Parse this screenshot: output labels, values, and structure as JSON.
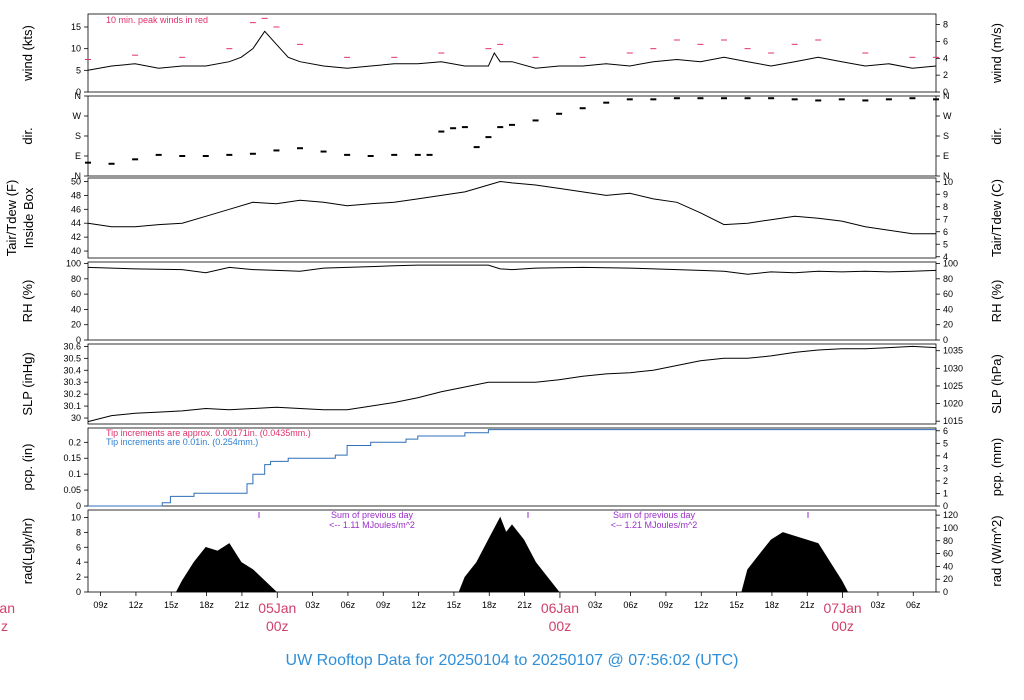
{
  "title": "UW Rooftop Data for 20250104  to  20250107 @ 07:56:02  (UTC)",
  "chart_data": {
    "type": "line",
    "time_axis": {
      "unit": "hours since 2025-01-04 07:56 UTC",
      "range": [
        0,
        72
      ],
      "ticks": [
        {
          "h": 1.07,
          "label": "09z"
        },
        {
          "h": 4.07,
          "label": "12z"
        },
        {
          "h": 7.07,
          "label": "15z"
        },
        {
          "h": 10.07,
          "label": "18z"
        },
        {
          "h": 13.07,
          "label": "21z"
        },
        {
          "h": 19.07,
          "label": "03z"
        },
        {
          "h": 22.07,
          "label": "06z"
        },
        {
          "h": 25.07,
          "label": "09z"
        },
        {
          "h": 28.07,
          "label": "12z"
        },
        {
          "h": 31.07,
          "label": "15z"
        },
        {
          "h": 34.07,
          "label": "18z"
        },
        {
          "h": 37.07,
          "label": "21z"
        },
        {
          "h": 43.07,
          "label": "03z"
        },
        {
          "h": 46.07,
          "label": "06z"
        },
        {
          "h": 49.07,
          "label": "09z"
        },
        {
          "h": 52.07,
          "label": "12z"
        },
        {
          "h": 55.07,
          "label": "15z"
        },
        {
          "h": 58.07,
          "label": "18z"
        },
        {
          "h": 61.07,
          "label": "21z"
        },
        {
          "h": 67.07,
          "label": "03z"
        },
        {
          "h": 70.07,
          "label": "06z"
        }
      ],
      "days": [
        {
          "h": 16.07,
          "label": "05Jan",
          "sub": "00z"
        },
        {
          "h": 40.07,
          "label": "06Jan",
          "sub": "00z"
        },
        {
          "h": 64.07,
          "label": "07Jan",
          "sub": "00z"
        }
      ],
      "left_cut": {
        "label": "Jan",
        "sub": "z"
      }
    },
    "panels": [
      {
        "id": "wind",
        "ylabel": "wind (kts)",
        "ylabel_right": "wind (m/s)",
        "ylim": [
          0,
          18
        ],
        "yticks": [
          0,
          5,
          10,
          15
        ],
        "right_ylim": [
          0,
          9.26
        ],
        "right_yticks": [
          0,
          2,
          4,
          6,
          8
        ],
        "annotation": "10 min. peak winds in red",
        "series": {
          "x": [
            0,
            2,
            4,
            6,
            8,
            10,
            12,
            13,
            14,
            15,
            16,
            17,
            18,
            20,
            22,
            24,
            26,
            28,
            30,
            32,
            34,
            34.5,
            35,
            36,
            38,
            40,
            42,
            44,
            46,
            48,
            50,
            52,
            54,
            56,
            58,
            60,
            62,
            64,
            66,
            68,
            70,
            72
          ],
          "y": [
            5,
            6,
            6.5,
            5.5,
            6,
            6,
            7,
            8,
            10,
            14,
            11,
            8,
            7,
            6,
            5.5,
            6,
            6.5,
            6.5,
            7,
            6,
            6,
            9,
            7,
            7,
            5.5,
            6,
            6,
            6.5,
            6,
            7,
            7.5,
            7,
            8,
            7,
            6,
            7,
            8,
            7,
            6,
            6.5,
            5.5,
            6
          ]
        },
        "peaks": {
          "x": [
            0,
            4,
            8,
            12,
            14,
            15,
            16,
            18,
            22,
            26,
            30,
            34,
            35,
            38,
            42,
            46,
            48,
            50,
            52,
            54,
            56,
            58,
            60,
            62,
            66,
            70,
            72
          ],
          "y": [
            7.5,
            8.5,
            8,
            10,
            16,
            17,
            15,
            11,
            8,
            8,
            9,
            10,
            11,
            8,
            8,
            9,
            10,
            12,
            11,
            12,
            10,
            9,
            11,
            12,
            9,
            8,
            8
          ]
        }
      },
      {
        "id": "dir",
        "ylabel": "dir.",
        "ylabel_right": "dir.",
        "ylim": [
          0,
          360
        ],
        "ytick_labels": [
          "N",
          "E",
          "S",
          "W",
          "N"
        ],
        "yticks": [
          0,
          90,
          180,
          270,
          360
        ],
        "series": {
          "x": [
            0,
            2,
            4,
            6,
            8,
            10,
            12,
            14,
            16,
            18,
            20,
            22,
            24,
            26,
            28,
            29,
            30,
            31,
            32,
            33,
            34,
            35,
            36,
            38,
            40,
            42,
            44,
            46,
            48,
            50,
            52,
            54,
            56,
            58,
            60,
            62,
            64,
            66,
            68,
            70,
            72
          ],
          "y": [
            60,
            55,
            75,
            95,
            90,
            90,
            95,
            100,
            115,
            125,
            110,
            95,
            90,
            95,
            95,
            95,
            200,
            215,
            220,
            130,
            175,
            220,
            230,
            250,
            280,
            305,
            330,
            345,
            345,
            350,
            350,
            350,
            350,
            350,
            345,
            340,
            345,
            340,
            345,
            350,
            345
          ]
        }
      },
      {
        "id": "temp",
        "ylabel": "Tair/Tdew (F)",
        "ylabel2": "Inside Box",
        "ylabel_right": "Tair/Tdew (C)",
        "ylim": [
          39,
          50.5
        ],
        "yticks": [
          40,
          42,
          44,
          46,
          48,
          50
        ],
        "right_ylim": [
          3.9,
          10.3
        ],
        "right_yticks": [
          4,
          5,
          6,
          7,
          8,
          9,
          10
        ],
        "series": {
          "x": [
            0,
            2,
            4,
            6,
            8,
            10,
            12,
            14,
            16,
            18,
            20,
            22,
            24,
            26,
            28,
            30,
            32,
            34,
            35,
            36,
            38,
            40,
            42,
            44,
            46,
            48,
            50,
            52,
            54,
            56,
            58,
            60,
            62,
            64,
            66,
            68,
            70,
            72
          ],
          "y": [
            44,
            43.5,
            43.5,
            43.8,
            44,
            45,
            46,
            47,
            46.8,
            47.3,
            47,
            46.5,
            46.8,
            47,
            47.5,
            48,
            48.5,
            49.5,
            50,
            49.8,
            49.5,
            49,
            48.5,
            48,
            48.3,
            47.5,
            47,
            45.5,
            43.8,
            44,
            44.5,
            45,
            44.7,
            44.3,
            43.5,
            43,
            42.5,
            42.5
          ]
        }
      },
      {
        "id": "rh",
        "ylabel": "RH (%)",
        "ylabel_right": "RH (%)",
        "ylim": [
          0,
          102
        ],
        "yticks": [
          0,
          20,
          40,
          60,
          80,
          100
        ],
        "series": {
          "x": [
            0,
            4,
            8,
            10,
            12,
            14,
            16,
            18,
            20,
            22,
            24,
            26,
            28,
            30,
            32,
            34,
            35,
            36,
            38,
            42,
            46,
            50,
            52,
            54,
            56,
            58,
            60,
            62,
            64,
            66,
            68,
            70,
            72
          ],
          "y": [
            95,
            93,
            92,
            88,
            95,
            92,
            91,
            90,
            94,
            95,
            96,
            97,
            98,
            98,
            98,
            98,
            93,
            92,
            94,
            95,
            94,
            92,
            91,
            90,
            86,
            89,
            88,
            90,
            89,
            90,
            89,
            90,
            91
          ]
        }
      },
      {
        "id": "slp",
        "ylabel": "SLP (inHg)",
        "ylabel_right": "SLP (hPa)",
        "ylim": [
          29.95,
          30.62
        ],
        "yticks": [
          30.0,
          30.1,
          30.2,
          30.3,
          30.4,
          30.5,
          30.6
        ],
        "right_ylim": [
          1014.2,
          1036.9
        ],
        "right_yticks": [
          1015,
          1020,
          1025,
          1030,
          1035
        ],
        "series": {
          "x": [
            0,
            2,
            4,
            6,
            8,
            10,
            12,
            14,
            16,
            18,
            20,
            22,
            24,
            26,
            28,
            30,
            32,
            34,
            36,
            38,
            40,
            42,
            44,
            46,
            48,
            50,
            52,
            54,
            56,
            58,
            60,
            62,
            64,
            66,
            68,
            70,
            72
          ],
          "y": [
            29.97,
            30.02,
            30.04,
            30.05,
            30.06,
            30.08,
            30.07,
            30.08,
            30.09,
            30.08,
            30.07,
            30.07,
            30.1,
            30.13,
            30.17,
            30.22,
            30.26,
            30.3,
            30.3,
            30.3,
            30.32,
            30.35,
            30.37,
            30.38,
            30.4,
            30.44,
            30.48,
            30.5,
            30.5,
            30.52,
            30.55,
            30.57,
            30.58,
            30.58,
            30.59,
            30.6,
            30.59
          ]
        }
      },
      {
        "id": "pcp",
        "ylabel": "pcp. (in)",
        "ylabel_right": "pcp. (mm)",
        "ylim": [
          0,
          0.245
        ],
        "yticks": [
          0.0,
          0.05,
          0.1,
          0.15,
          0.2
        ],
        "right_ylim": [
          0,
          6.22
        ],
        "right_yticks": [
          0,
          1,
          2,
          3,
          4,
          5,
          6
        ],
        "annotation_red": "Tip increments are approx. 0.00171in. (0.0435mm.)",
        "annotation_blue": "Tip increments are 0.01in. (0.254mm.)",
        "series": {
          "x": [
            0,
            6,
            6.3,
            7,
            9,
            13,
            13.5,
            14,
            15,
            15.5,
            16,
            17,
            21,
            22,
            24,
            26,
            27,
            28,
            30,
            31,
            32,
            33,
            34,
            35,
            36,
            72
          ],
          "y": [
            0,
            0,
            0.01,
            0.03,
            0.04,
            0.04,
            0.07,
            0.1,
            0.13,
            0.14,
            0.14,
            0.15,
            0.16,
            0.19,
            0.2,
            0.2,
            0.21,
            0.22,
            0.22,
            0.22,
            0.23,
            0.23,
            0.24,
            0.24,
            0.24,
            0.24
          ]
        }
      },
      {
        "id": "rad",
        "type": "area",
        "ylabel": "rad(Lgly/hr)",
        "ylabel_right": "rad (W/m^2)",
        "ylim": [
          0,
          11
        ],
        "yticks": [
          0,
          2,
          4,
          6,
          8,
          10
        ],
        "right_ylim": [
          0,
          128
        ],
        "right_yticks": [
          0,
          20,
          40,
          60,
          80,
          100,
          120
        ],
        "annotations": [
          {
            "line1": "Sum of previous day",
            "line2": "<-- 1.11 MJoules/m^2"
          },
          {
            "line1": "Sum of previous day",
            "line2": "<-- 1.21 MJoules/m^2"
          }
        ],
        "series": {
          "x": [
            7.5,
            8,
            9,
            10,
            11,
            12,
            13,
            14,
            15,
            16,
            31.5,
            32,
            33,
            34,
            35,
            35.5,
            36,
            37,
            38,
            39,
            40,
            55.5,
            56,
            57,
            58,
            59,
            60,
            61,
            62,
            63,
            64,
            64.5
          ],
          "y": [
            0,
            1.5,
            4,
            6,
            5.5,
            6.5,
            4,
            3,
            1.5,
            0,
            0,
            2,
            4,
            7,
            10,
            8,
            9,
            7,
            4,
            2,
            0,
            0,
            3,
            5,
            7,
            8,
            7.5,
            7,
            6.5,
            4,
            1.5,
            0
          ]
        }
      }
    ]
  }
}
